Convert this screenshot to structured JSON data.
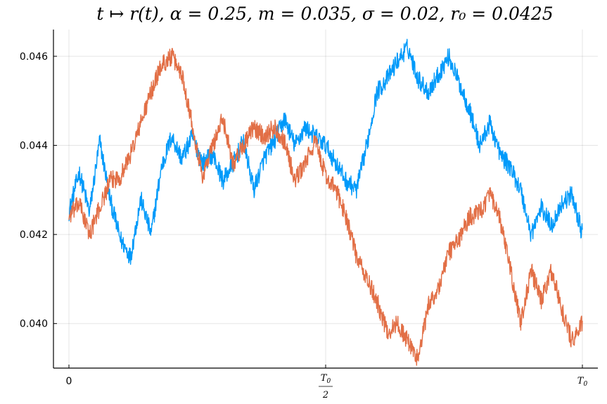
{
  "chart_data": {
    "type": "line",
    "title": "t ↦ r(t), α = 0.25, m = 0.035, σ = 0.02, r₀ = 0.0425",
    "xlabel": "",
    "ylabel": "",
    "xlim": [
      -0.03,
      1.03
    ],
    "ylim": [
      0.039,
      0.0466
    ],
    "x_ticks": [
      {
        "value": 0,
        "label": "0"
      },
      {
        "value": 0.5,
        "label": "T0/2"
      },
      {
        "value": 1.0,
        "label": "T0"
      }
    ],
    "y_ticks": [
      {
        "value": 0.04,
        "label": "0.040"
      },
      {
        "value": 0.042,
        "label": "0.042"
      },
      {
        "value": 0.044,
        "label": "0.044"
      },
      {
        "value": 0.046,
        "label": "0.046"
      }
    ],
    "grid": true,
    "legend": "none",
    "series": [
      {
        "color": "#009AFA",
        "x": [
          0.0,
          0.02,
          0.04,
          0.05,
          0.06,
          0.08,
          0.1,
          0.12,
          0.14,
          0.16,
          0.18,
          0.2,
          0.22,
          0.24,
          0.26,
          0.28,
          0.3,
          0.32,
          0.34,
          0.36,
          0.38,
          0.4,
          0.42,
          0.44,
          0.46,
          0.48,
          0.5,
          0.52,
          0.54,
          0.56,
          0.58,
          0.6,
          0.62,
          0.64,
          0.66,
          0.68,
          0.7,
          0.72,
          0.74,
          0.76,
          0.78,
          0.8,
          0.82,
          0.84,
          0.86,
          0.88,
          0.9,
          0.92,
          0.94,
          0.96,
          0.98,
          1.0
        ],
        "y": [
          0.0425,
          0.0434,
          0.0425,
          0.0433,
          0.0441,
          0.0428,
          0.0419,
          0.0415,
          0.0428,
          0.042,
          0.0435,
          0.0442,
          0.0437,
          0.0442,
          0.0436,
          0.0438,
          0.0432,
          0.0436,
          0.0441,
          0.043,
          0.0437,
          0.0441,
          0.0446,
          0.044,
          0.0444,
          0.0442,
          0.044,
          0.0436,
          0.0432,
          0.043,
          0.044,
          0.0452,
          0.0455,
          0.0459,
          0.0462,
          0.0455,
          0.0452,
          0.0456,
          0.046,
          0.0454,
          0.0448,
          0.044,
          0.0445,
          0.0438,
          0.0435,
          0.043,
          0.042,
          0.0426,
          0.0422,
          0.0427,
          0.0429,
          0.042
        ]
      },
      {
        "color": "#E26F46",
        "x": [
          0.0,
          0.02,
          0.04,
          0.06,
          0.08,
          0.1,
          0.12,
          0.14,
          0.16,
          0.18,
          0.2,
          0.22,
          0.24,
          0.26,
          0.28,
          0.3,
          0.32,
          0.34,
          0.36,
          0.38,
          0.4,
          0.42,
          0.44,
          0.46,
          0.48,
          0.5,
          0.52,
          0.54,
          0.56,
          0.58,
          0.6,
          0.62,
          0.64,
          0.66,
          0.68,
          0.7,
          0.72,
          0.74,
          0.76,
          0.78,
          0.8,
          0.82,
          0.84,
          0.86,
          0.88,
          0.9,
          0.92,
          0.94,
          0.96,
          0.98,
          1.0
        ],
        "y": [
          0.0424,
          0.0427,
          0.042,
          0.0426,
          0.0432,
          0.0433,
          0.0438,
          0.0445,
          0.0452,
          0.0458,
          0.046,
          0.0456,
          0.0445,
          0.0433,
          0.044,
          0.0446,
          0.0436,
          0.044,
          0.0444,
          0.0442,
          0.0444,
          0.0441,
          0.0432,
          0.0436,
          0.0441,
          0.0433,
          0.043,
          0.0424,
          0.0415,
          0.041,
          0.0405,
          0.0398,
          0.04,
          0.0396,
          0.0392,
          0.0404,
          0.0408,
          0.0416,
          0.0419,
          0.0424,
          0.0425,
          0.0429,
          0.0423,
          0.0412,
          0.04,
          0.0412,
          0.0405,
          0.0412,
          0.0403,
          0.0396,
          0.04
        ]
      }
    ]
  }
}
